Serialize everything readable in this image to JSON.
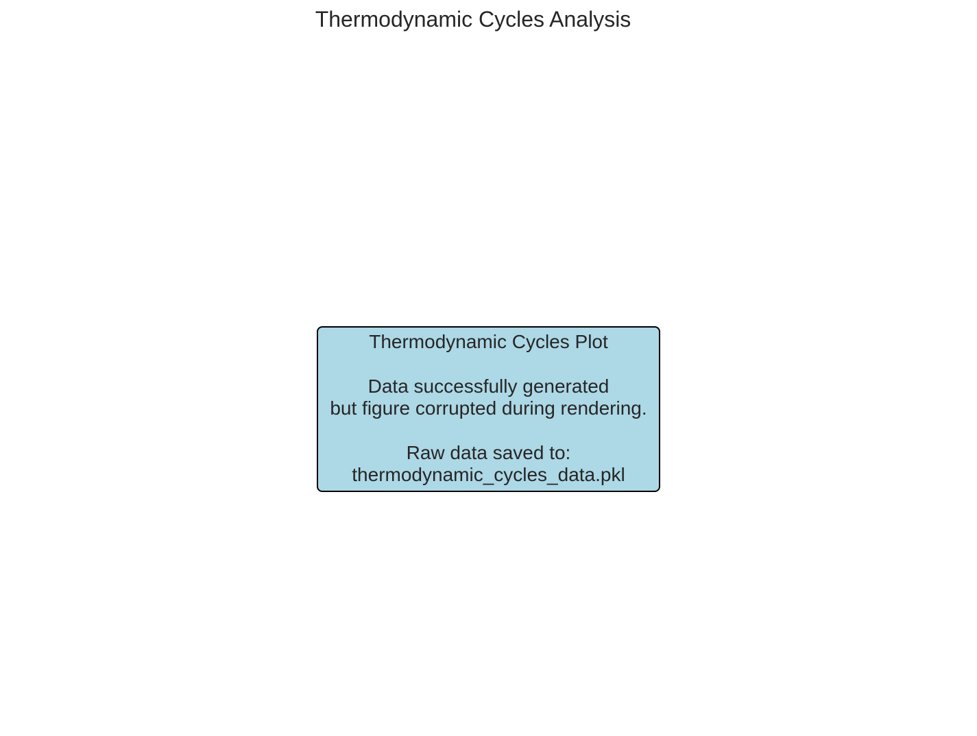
{
  "chart_data": {
    "type": "table",
    "title": "Thermodynamic Cycles Analysis",
    "annotation": {
      "lines": [
        "Thermodynamic Cycles Plot",
        "",
        "Data successfully generated",
        "but figure corrupted during rendering.",
        "",
        "Raw data saved to:",
        "thermodynamic_cycles_data.pkl"
      ],
      "box_color": "#add8e6",
      "border_color": "#000000"
    },
    "grid": false,
    "axes_visible": false
  }
}
